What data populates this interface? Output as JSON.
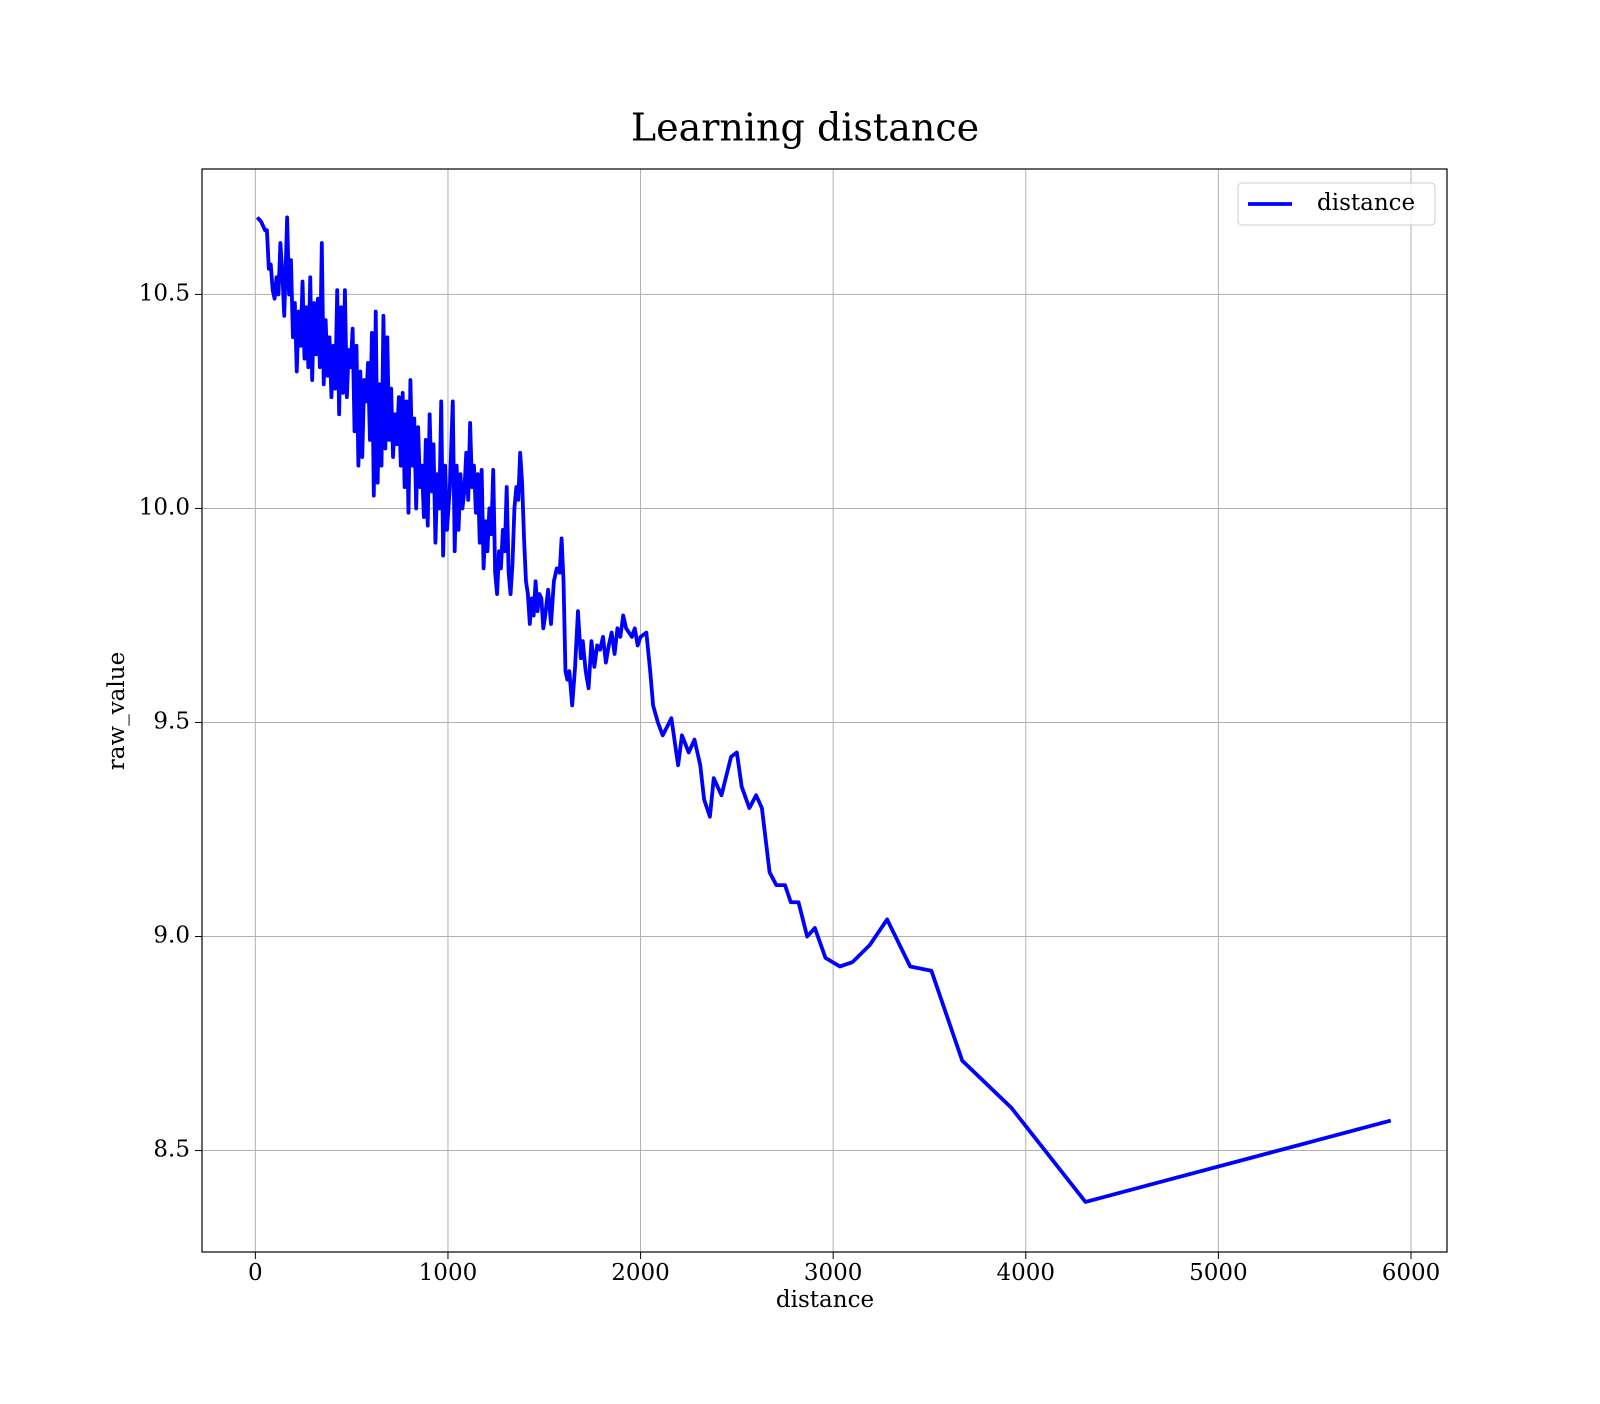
{
  "chart_data": {
    "type": "line",
    "title": "Learning distance",
    "xlabel": "distance",
    "ylabel": "raw_value",
    "grid": true,
    "legend": "upper right",
    "xlim": [
      -277,
      6187
    ],
    "ylim": [
      8.263,
      10.793
    ],
    "xticks": [
      0,
      1000,
      2000,
      3000,
      4000,
      5000,
      6000
    ],
    "yticks": [
      8.5,
      {
        "value": 9.0,
        "label": "9.0"
      },
      9.5,
      {
        "value": 10.0,
        "label": "10.0"
      },
      10.5
    ],
    "x": [
      10,
      30,
      50,
      60,
      70,
      80,
      90,
      100,
      110,
      120,
      130,
      140,
      150,
      160,
      165,
      175,
      185,
      195,
      205,
      215,
      225,
      235,
      245,
      255,
      265,
      275,
      285,
      295,
      305,
      315,
      325,
      335,
      345,
      355,
      365,
      375,
      385,
      395,
      405,
      415,
      425,
      435,
      445,
      455,
      465,
      475,
      485,
      495,
      505,
      515,
      525,
      535,
      545,
      555,
      565,
      575,
      585,
      595,
      605,
      615,
      625,
      635,
      645,
      655,
      665,
      675,
      685,
      695,
      705,
      715,
      725,
      735,
      745,
      755,
      765,
      775,
      785,
      795,
      805,
      815,
      825,
      835,
      845,
      855,
      865,
      875,
      885,
      895,
      905,
      915,
      925,
      935,
      945,
      955,
      965,
      975,
      985,
      995,
      1010,
      1025,
      1035,
      1045,
      1055,
      1065,
      1075,
      1085,
      1095,
      1105,
      1115,
      1125,
      1135,
      1145,
      1155,
      1165,
      1175,
      1185,
      1195,
      1205,
      1215,
      1225,
      1235,
      1245,
      1255,
      1265,
      1275,
      1285,
      1295,
      1305,
      1315,
      1325,
      1335,
      1345,
      1355,
      1365,
      1375,
      1385,
      1395,
      1405,
      1415,
      1425,
      1435,
      1445,
      1455,
      1465,
      1475,
      1485,
      1495,
      1505,
      1520,
      1535,
      1550,
      1565,
      1580,
      1590,
      1600,
      1610,
      1620,
      1630,
      1645,
      1660,
      1675,
      1690,
      1700,
      1715,
      1730,
      1745,
      1760,
      1775,
      1790,
      1805,
      1820,
      1835,
      1850,
      1865,
      1880,
      1895,
      1910,
      1925,
      1940,
      1955,
      1970,
      1985,
      2000,
      2030,
      2050,
      2065,
      2090,
      2115,
      2160,
      2195,
      2215,
      2250,
      2280,
      2310,
      2330,
      2360,
      2380,
      2420,
      2470,
      2500,
      2525,
      2565,
      2600,
      2630,
      2670,
      2705,
      2750,
      2780,
      2820,
      2865,
      2905,
      2960,
      3035,
      3100,
      3190,
      3280,
      3400,
      3510,
      3670,
      3925,
      4310,
      5895
    ],
    "series": [
      {
        "name": "distance",
        "color": "#0000ff",
        "values": [
          10.68,
          10.67,
          10.65,
          10.65,
          10.56,
          10.57,
          10.51,
          10.49,
          10.54,
          10.5,
          10.62,
          10.55,
          10.45,
          10.6,
          10.68,
          10.5,
          10.58,
          10.4,
          10.48,
          10.32,
          10.46,
          10.38,
          10.53,
          10.35,
          10.47,
          10.33,
          10.54,
          10.3,
          10.48,
          10.36,
          10.49,
          10.33,
          10.62,
          10.29,
          10.44,
          10.31,
          10.4,
          10.26,
          10.38,
          10.28,
          10.51,
          10.22,
          10.47,
          10.27,
          10.51,
          10.26,
          10.37,
          10.33,
          10.42,
          10.18,
          10.38,
          10.1,
          10.32,
          10.12,
          10.3,
          10.25,
          10.34,
          10.16,
          10.41,
          10.03,
          10.46,
          10.06,
          10.29,
          10.1,
          10.45,
          10.14,
          10.4,
          10.16,
          10.28,
          10.12,
          10.22,
          10.15,
          10.26,
          10.1,
          10.27,
          10.05,
          10.25,
          9.99,
          10.3,
          10.1,
          10.21,
          10.0,
          10.19,
          10.05,
          10.1,
          9.98,
          10.16,
          9.96,
          10.22,
          10.04,
          10.15,
          9.92,
          10.08,
          10.0,
          10.25,
          9.89,
          10.1,
          9.95,
          10.05,
          10.25,
          9.9,
          10.1,
          9.95,
          10.08,
          10.0,
          10.04,
          10.13,
          10.02,
          10.2,
          10.05,
          10.1,
          9.99,
          10.08,
          9.92,
          10.09,
          9.86,
          9.97,
          9.9,
          10.0,
          9.94,
          10.09,
          9.85,
          9.8,
          9.9,
          9.86,
          9.95,
          9.9,
          10.05,
          9.85,
          9.8,
          9.87,
          10.0,
          10.05,
          10.02,
          10.13,
          10.06,
          9.93,
          9.83,
          9.8,
          9.73,
          9.79,
          9.75,
          9.83,
          9.76,
          9.8,
          9.79,
          9.72,
          9.75,
          9.81,
          9.73,
          9.83,
          9.86,
          9.85,
          9.93,
          9.83,
          9.62,
          9.6,
          9.62,
          9.54,
          9.63,
          9.76,
          9.65,
          9.69,
          9.62,
          9.58,
          9.69,
          9.63,
          9.68,
          9.67,
          9.7,
          9.64,
          9.68,
          9.71,
          9.66,
          9.72,
          9.7,
          9.75,
          9.72,
          9.71,
          9.7,
          9.72,
          9.68,
          9.7,
          9.71,
          9.62,
          9.54,
          9.5,
          9.47,
          9.51,
          9.4,
          9.47,
          9.43,
          9.46,
          9.4,
          9.32,
          9.28,
          9.37,
          9.33,
          9.42,
          9.43,
          9.35,
          9.3,
          9.33,
          9.3,
          9.15,
          9.12,
          9.12,
          9.08,
          9.08,
          9.0,
          9.02,
          8.95,
          8.93,
          8.94,
          8.98,
          9.04,
          8.93,
          8.92,
          8.71,
          8.6,
          8.38,
          8.57
        ]
      }
    ]
  }
}
